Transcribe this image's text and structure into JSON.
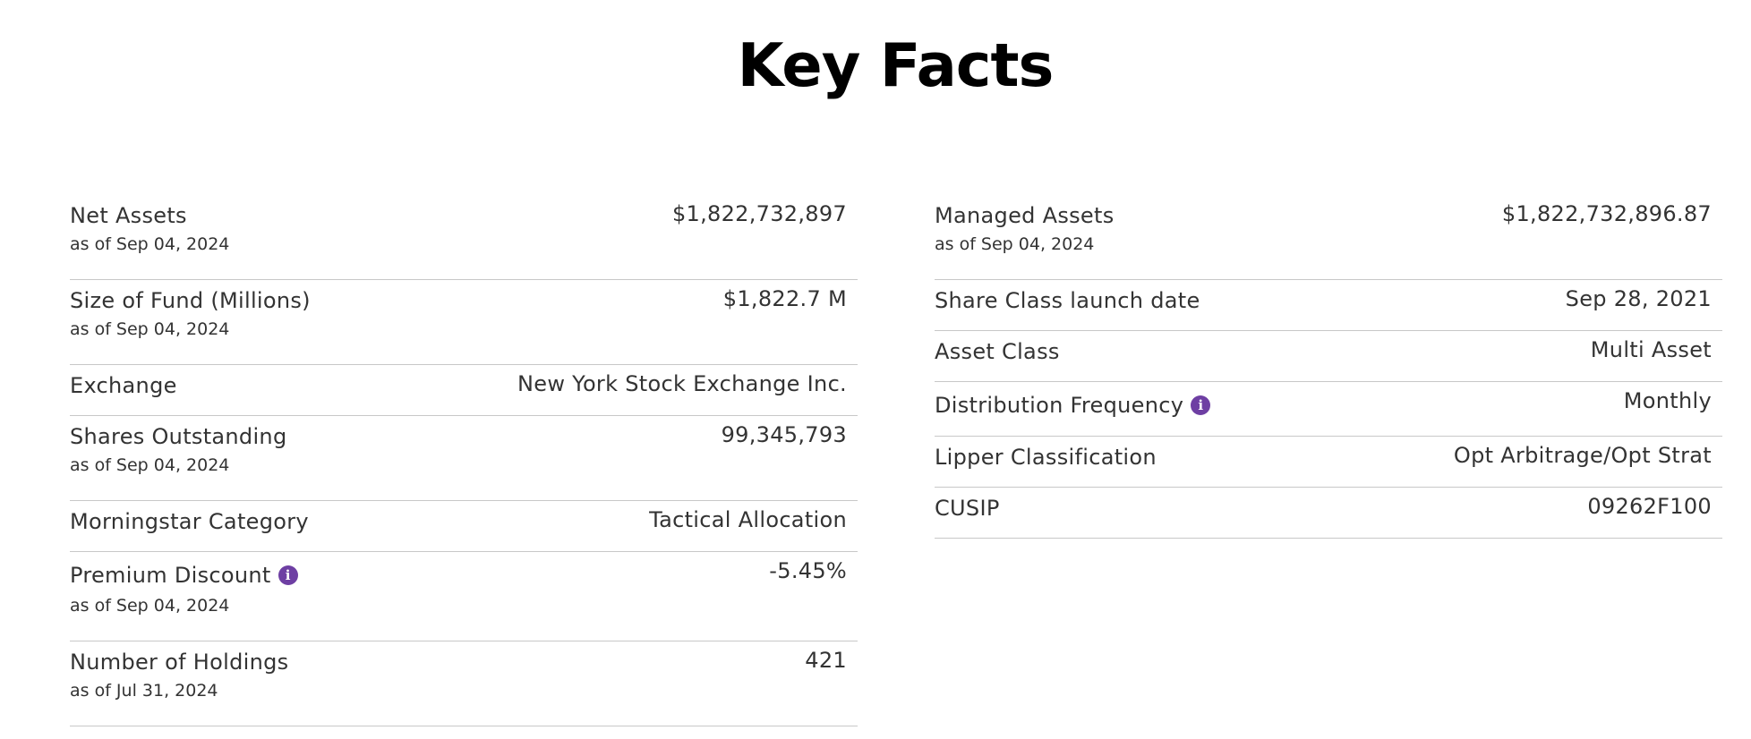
{
  "title": "Key Facts",
  "colors": {
    "info_icon": "#6e3fa3",
    "divider": "#c8c8c8",
    "text": "#333333"
  },
  "left": [
    {
      "label": "Net Assets",
      "date": "as of Sep 04, 2024",
      "value": "$1,822,732,897"
    },
    {
      "label": "Size of Fund (Millions)",
      "date": "as of Sep 04, 2024",
      "value": "$1,822.7 M"
    },
    {
      "label": "Exchange",
      "value": "New York Stock Exchange Inc."
    },
    {
      "label": "Shares Outstanding",
      "date": "as of Sep 04, 2024",
      "value": "99,345,793"
    },
    {
      "label": "Morningstar Category",
      "value": "Tactical Allocation"
    },
    {
      "label": "Premium Discount",
      "date": "as of Sep 04, 2024",
      "value": "-5.45%",
      "icon": "info-icon"
    },
    {
      "label": "Number of Holdings",
      "date": "as of Jul 31, 2024",
      "value": "421"
    }
  ],
  "right": [
    {
      "label": "Managed Assets",
      "date": "as of Sep 04, 2024",
      "value": "$1,822,732,896.87"
    },
    {
      "label": "Share Class launch date",
      "value": "Sep 28, 2021"
    },
    {
      "label": "Asset Class",
      "value": "Multi Asset"
    },
    {
      "label": "Distribution Frequency",
      "value": "Monthly",
      "icon": "info-icon"
    },
    {
      "label": "Lipper Classification",
      "value": "Opt Arbitrage/Opt Strat"
    },
    {
      "label": "CUSIP",
      "value": "09262F100"
    }
  ],
  "info_glyph": "i"
}
